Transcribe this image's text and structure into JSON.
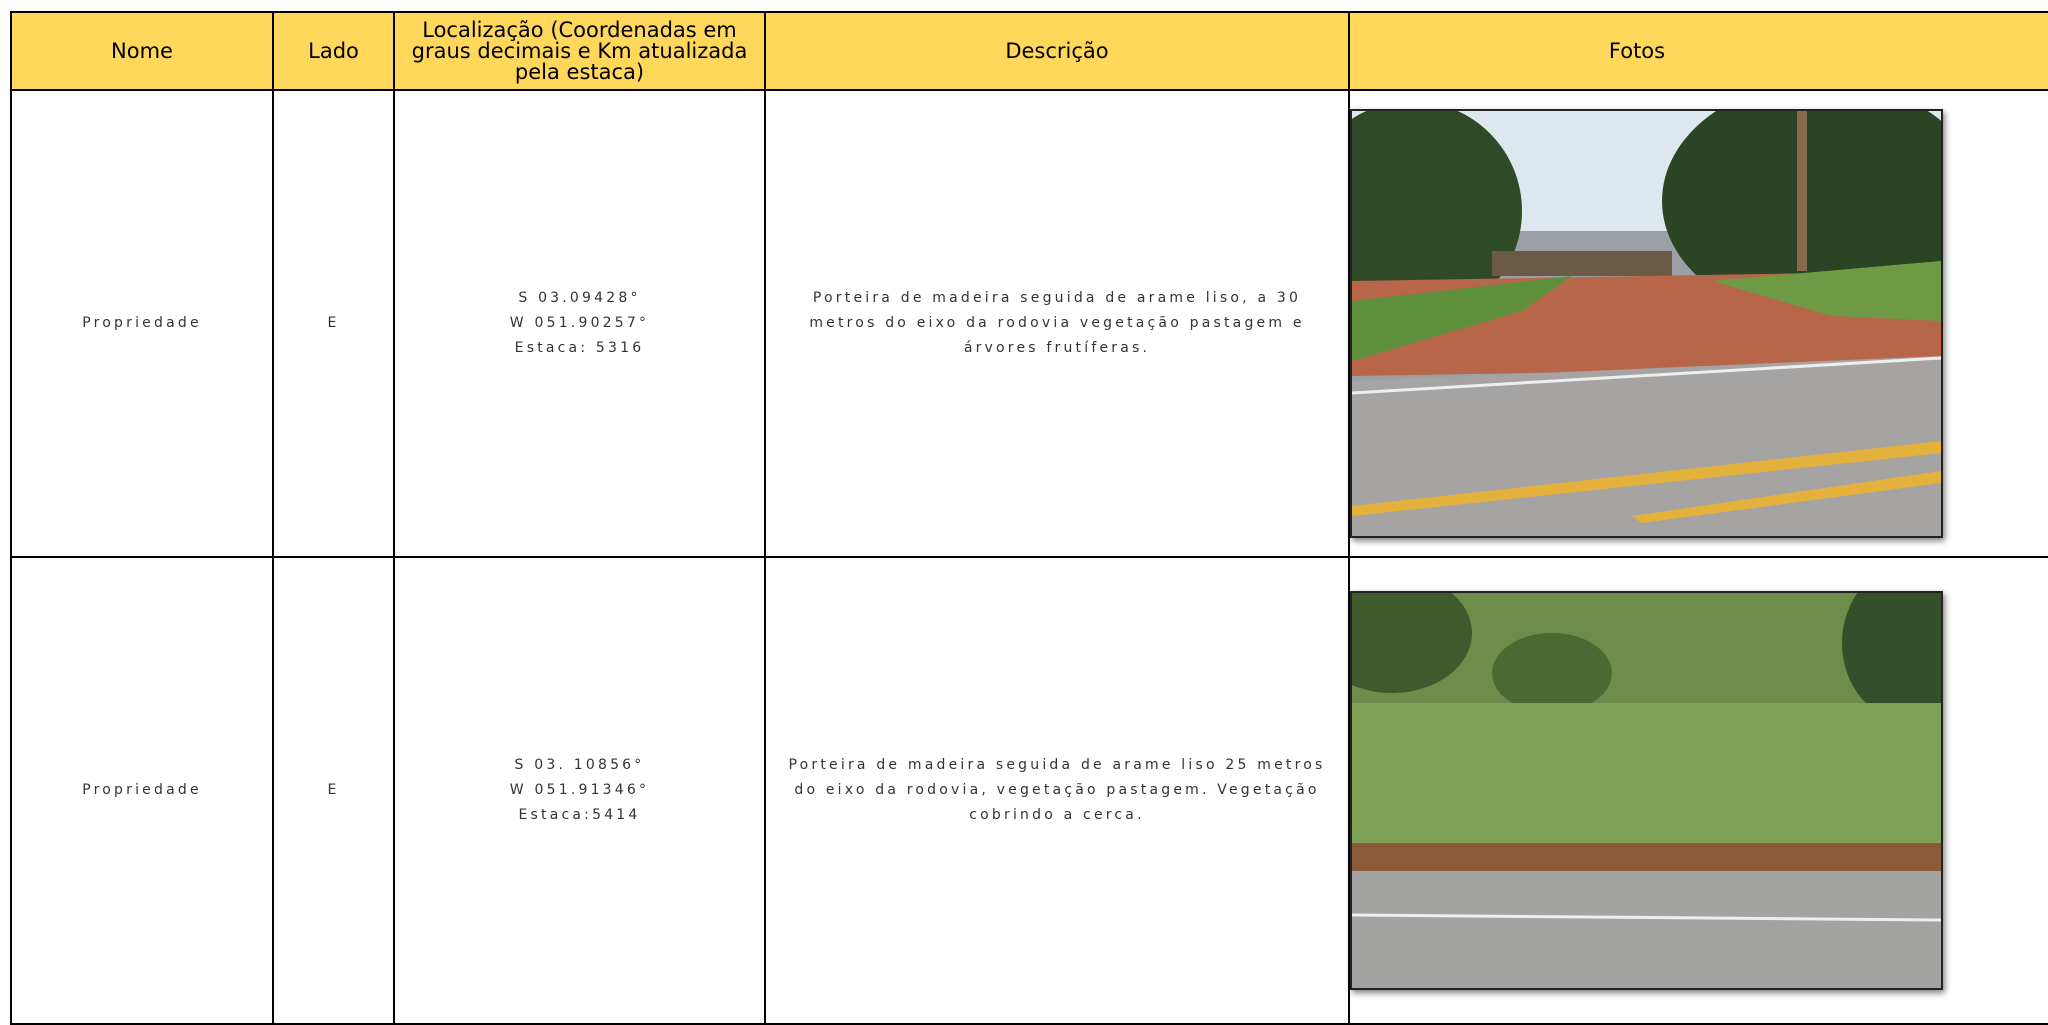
{
  "table": {
    "headers": [
      "Nome",
      "Lado",
      "Localização (Coordenadas em graus decimais e Km atualizada pela estaca)",
      "Descrição",
      "Fotos"
    ],
    "rows": [
      {
        "nome": "Propriedade",
        "lado": "E",
        "localizacao": [
          "S 03.09428°",
          "W 051.90257°",
          "Estaca: 5316"
        ],
        "descricao": "Porteira de madeira seguida de arame liso, a 30 metros do eixo da rodovia vegetação pastagem e árvores frutíferas."
      },
      {
        "nome": "Propriedade",
        "lado": "E",
        "localizacao": [
          "S 03. 10856°",
          "W 051.91346°",
          "Estaca:5414"
        ],
        "descricao": "Porteira de madeira seguida de arame liso 25 metros do eixo da rodovia, vegetação pastagem. Vegetação cobrindo a cerca."
      }
    ]
  }
}
